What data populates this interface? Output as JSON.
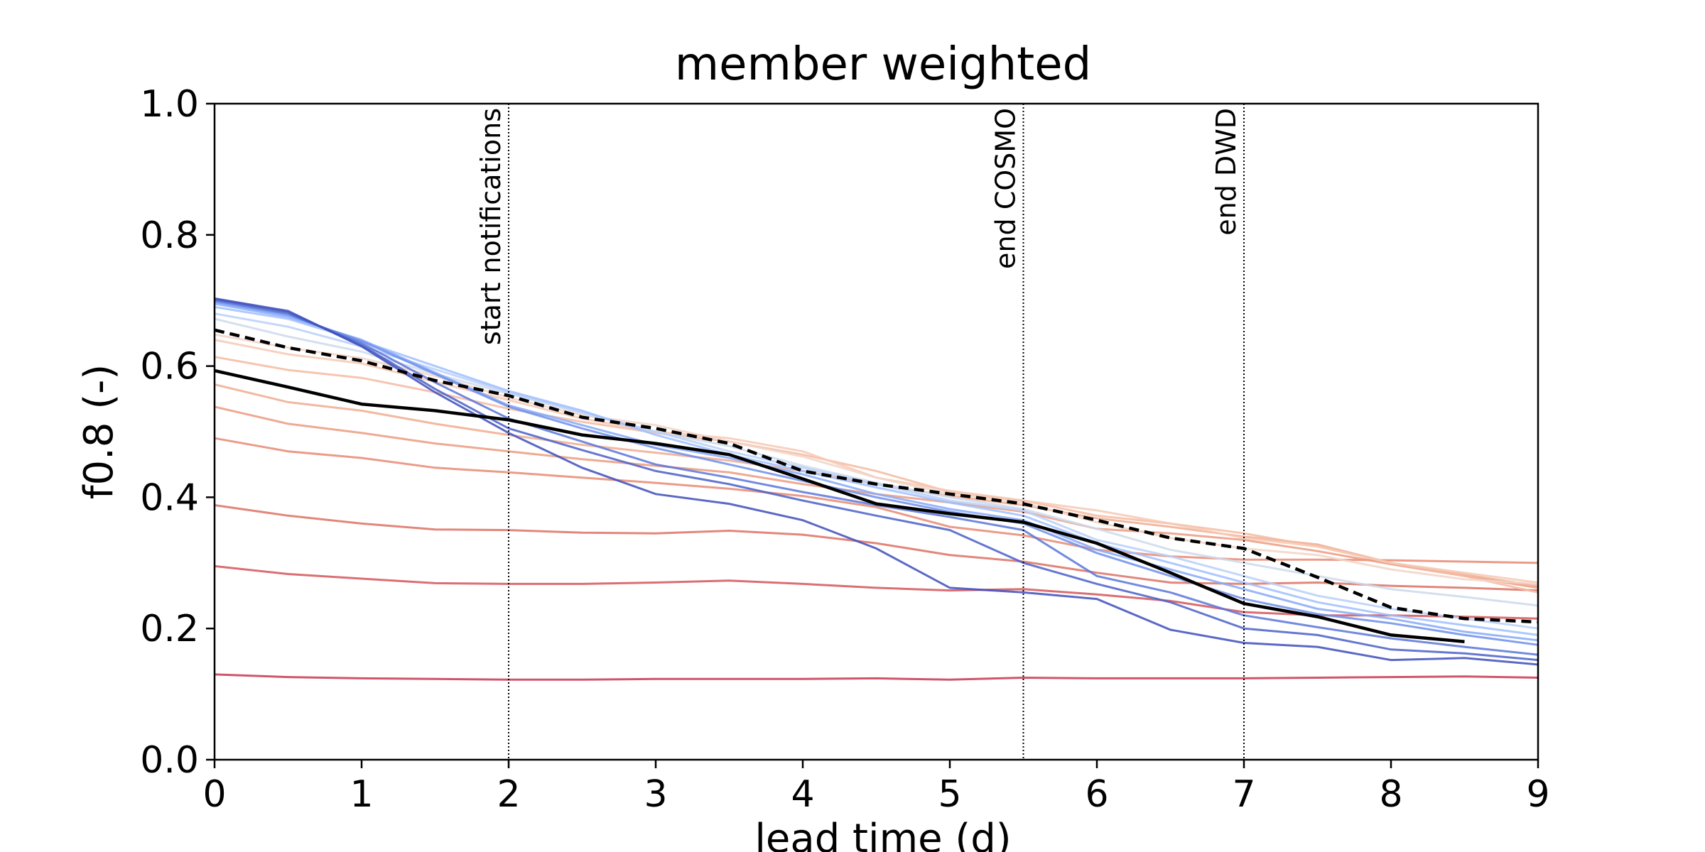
{
  "chart_data": {
    "type": "line",
    "title": "member weighted",
    "xlabel": "lead time (d)",
    "ylabel": "f0.8 (-)",
    "xlim": [
      0,
      9
    ],
    "ylim": [
      0,
      1
    ],
    "xticks": [
      "0",
      "1",
      "2",
      "3",
      "4",
      "5",
      "6",
      "7",
      "8",
      "9"
    ],
    "yticks": [
      "0.0",
      "0.2",
      "0.4",
      "0.6",
      "0.8",
      "1.0"
    ],
    "grid": false,
    "x": [
      0,
      0.5,
      1,
      1.5,
      2,
      2.5,
      3,
      3.5,
      4,
      4.5,
      5,
      5.5,
      6,
      6.5,
      7,
      7.5,
      8,
      8.5,
      9
    ],
    "vlines": [
      {
        "x": 2,
        "label": "start notifications"
      },
      {
        "x": 5.5,
        "label": "end COSMO"
      },
      {
        "x": 7,
        "label": "end DWD"
      }
    ],
    "members": [
      {
        "color": "#c8374f",
        "values": [
          0.13,
          0.126,
          0.124,
          0.123,
          0.122,
          0.122,
          0.123,
          0.123,
          0.123,
          0.124,
          0.122,
          0.125,
          0.124,
          0.124,
          0.124,
          0.125,
          0.126,
          0.127,
          0.125
        ]
      },
      {
        "color": "#d4565b",
        "values": [
          0.295,
          0.283,
          0.276,
          0.269,
          0.268,
          0.268,
          0.27,
          0.273,
          0.268,
          0.262,
          0.258,
          0.26,
          0.252,
          0.242,
          0.225,
          0.22,
          0.22,
          0.218,
          0.215
        ]
      },
      {
        "color": "#dc7264",
        "values": [
          0.388,
          0.372,
          0.36,
          0.351,
          0.35,
          0.346,
          0.345,
          0.349,
          0.343,
          0.33,
          0.312,
          0.302,
          0.285,
          0.27,
          0.268,
          0.27,
          0.265,
          0.262,
          0.258
        ]
      },
      {
        "color": "#e78a73",
        "values": [
          0.49,
          0.47,
          0.46,
          0.445,
          0.438,
          0.43,
          0.422,
          0.413,
          0.402,
          0.385,
          0.355,
          0.342,
          0.32,
          0.31,
          0.305,
          0.305,
          0.304,
          0.302,
          0.3
        ]
      },
      {
        "color": "#eb9b80",
        "values": [
          0.538,
          0.512,
          0.498,
          0.482,
          0.47,
          0.458,
          0.448,
          0.438,
          0.42,
          0.405,
          0.392,
          0.378,
          0.352,
          0.345,
          0.335,
          0.318,
          0.298,
          0.28,
          0.262
        ]
      },
      {
        "color": "#f0ac92",
        "values": [
          0.572,
          0.545,
          0.532,
          0.512,
          0.495,
          0.48,
          0.468,
          0.456,
          0.44,
          0.42,
          0.402,
          0.388,
          0.368,
          0.355,
          0.34,
          0.328,
          0.3,
          0.282,
          0.265
        ]
      },
      {
        "color": "#f4bba2",
        "values": [
          0.614,
          0.594,
          0.582,
          0.56,
          0.535,
          0.515,
          0.498,
          0.485,
          0.465,
          0.44,
          0.408,
          0.395,
          0.372,
          0.36,
          0.345,
          0.325,
          0.3,
          0.28,
          0.255
        ]
      },
      {
        "color": "#f6c9b4",
        "values": [
          0.64,
          0.618,
          0.604,
          0.576,
          0.548,
          0.52,
          0.5,
          0.49,
          0.47,
          0.43,
          0.41,
          0.395,
          0.38,
          0.36,
          0.338,
          0.325,
          0.3,
          0.285,
          0.27
        ]
      },
      {
        "color": "#f1d5c8",
        "values": [
          0.648,
          0.628,
          0.612,
          0.585,
          0.552,
          0.525,
          0.51,
          0.485,
          0.462,
          0.43,
          0.405,
          0.392,
          0.362,
          0.338,
          0.322,
          0.312,
          0.29,
          0.275,
          0.268
        ]
      },
      {
        "color": "#cdd9ec",
        "values": [
          0.672,
          0.645,
          0.622,
          0.588,
          0.558,
          0.528,
          0.5,
          0.478,
          0.448,
          0.422,
          0.4,
          0.382,
          0.352,
          0.32,
          0.3,
          0.28,
          0.26,
          0.248,
          0.235
        ]
      },
      {
        "color": "#b9d0f9",
        "values": [
          0.68,
          0.66,
          0.63,
          0.595,
          0.56,
          0.53,
          0.5,
          0.47,
          0.445,
          0.42,
          0.395,
          0.38,
          0.335,
          0.31,
          0.28,
          0.25,
          0.23,
          0.215,
          0.2
        ]
      },
      {
        "color": "#9fbfff",
        "values": [
          0.69,
          0.672,
          0.638,
          0.6,
          0.562,
          0.532,
          0.495,
          0.465,
          0.44,
          0.415,
          0.392,
          0.372,
          0.33,
          0.3,
          0.27,
          0.24,
          0.22,
          0.205,
          0.19
        ]
      },
      {
        "color": "#86a9f9",
        "values": [
          0.695,
          0.675,
          0.64,
          0.59,
          0.54,
          0.51,
          0.48,
          0.46,
          0.435,
          0.405,
          0.382,
          0.365,
          0.32,
          0.29,
          0.26,
          0.23,
          0.215,
          0.195,
          0.182
        ]
      },
      {
        "color": "#6f8fea",
        "values": [
          0.698,
          0.678,
          0.638,
          0.588,
          0.538,
          0.505,
          0.475,
          0.45,
          0.425,
          0.4,
          0.378,
          0.36,
          0.315,
          0.28,
          0.245,
          0.222,
          0.208,
          0.19,
          0.175
        ]
      },
      {
        "color": "#5a76d9",
        "values": [
          0.7,
          0.68,
          0.635,
          0.575,
          0.52,
          0.485,
          0.45,
          0.43,
          0.408,
          0.388,
          0.37,
          0.35,
          0.28,
          0.255,
          0.22,
          0.202,
          0.185,
          0.172,
          0.16
        ]
      },
      {
        "color": "#4a60c8",
        "values": [
          0.702,
          0.682,
          0.632,
          0.565,
          0.505,
          0.472,
          0.44,
          0.42,
          0.395,
          0.372,
          0.35,
          0.3,
          0.268,
          0.24,
          0.2,
          0.19,
          0.168,
          0.162,
          0.152
        ]
      },
      {
        "color": "#3e4fbb",
        "values": [
          0.703,
          0.684,
          0.63,
          0.56,
          0.498,
          0.445,
          0.405,
          0.39,
          0.365,
          0.322,
          0.262,
          0.255,
          0.245,
          0.198,
          0.178,
          0.172,
          0.152,
          0.155,
          0.145
        ]
      }
    ],
    "series": [
      {
        "style": "solid",
        "color": "#000000",
        "x": [
          0,
          0.5,
          1,
          1.5,
          2,
          2.5,
          3,
          3.5,
          4,
          4.5,
          5,
          5.5,
          6,
          6.5,
          7,
          7.5,
          8,
          8.5
        ],
        "values": [
          0.593,
          0.568,
          0.542,
          0.532,
          0.518,
          0.495,
          0.482,
          0.465,
          0.428,
          0.39,
          0.375,
          0.362,
          0.33,
          0.285,
          0.238,
          0.218,
          0.19,
          0.18
        ]
      },
      {
        "style": "dashed",
        "color": "#000000",
        "x": [
          0,
          0.5,
          1,
          1.5,
          2,
          2.5,
          3,
          3.5,
          4,
          4.5,
          5,
          5.5,
          6,
          6.5,
          7,
          7.5,
          8,
          8.5,
          9
        ],
        "values": [
          0.655,
          0.628,
          0.608,
          0.578,
          0.555,
          0.522,
          0.505,
          0.482,
          0.44,
          0.42,
          0.405,
          0.39,
          0.365,
          0.338,
          0.322,
          0.278,
          0.232,
          0.215,
          0.21
        ]
      }
    ]
  }
}
